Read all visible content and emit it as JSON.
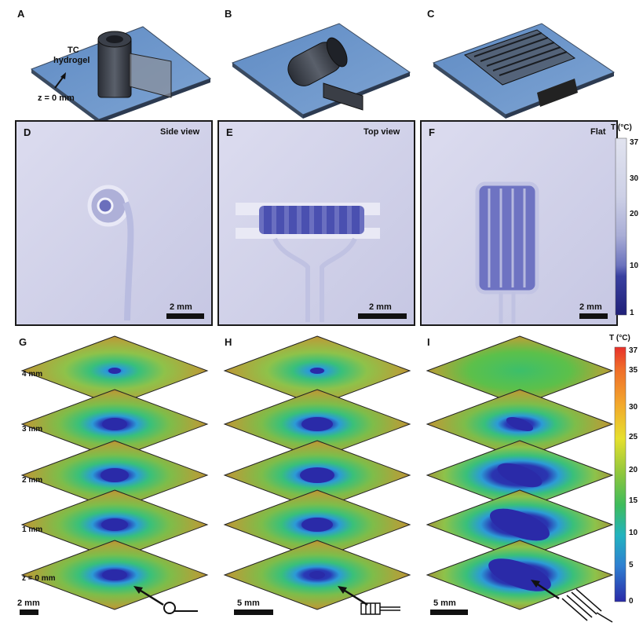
{
  "panels": {
    "A": {
      "label": "A",
      "material_label_1": "TC",
      "material_label_2": "hydrogel",
      "z_label": "z = 0 mm"
    },
    "B": {
      "label": "B"
    },
    "C": {
      "label": "C"
    },
    "D": {
      "label": "D",
      "view": "Side view",
      "scale": "2 mm"
    },
    "E": {
      "label": "E",
      "view": "Top view",
      "scale": "2 mm"
    },
    "F": {
      "label": "F",
      "view": "Flat",
      "scale": "2 mm"
    },
    "G": {
      "label": "G",
      "scale": "2 mm"
    },
    "H": {
      "label": "H",
      "scale": "5 mm"
    },
    "I": {
      "label": "I",
      "scale": "5 mm"
    }
  },
  "z_levels": [
    "4 mm",
    "3 mm",
    "2 mm",
    "1 mm",
    "z = 0 mm"
  ],
  "colorbar_top": {
    "title": "T (°C)",
    "ticks": [
      "37",
      "30",
      "20",
      "10",
      "1"
    ]
  },
  "colorbar_bottom": {
    "title": "T (°C)",
    "ticks": [
      "37",
      "35",
      "30",
      "25",
      "20",
      "15",
      "10",
      "5",
      "0"
    ]
  },
  "colors": {
    "cool": "#2a2aa8",
    "plate": "#6a8fc0",
    "frame": "#1a1a1a"
  }
}
